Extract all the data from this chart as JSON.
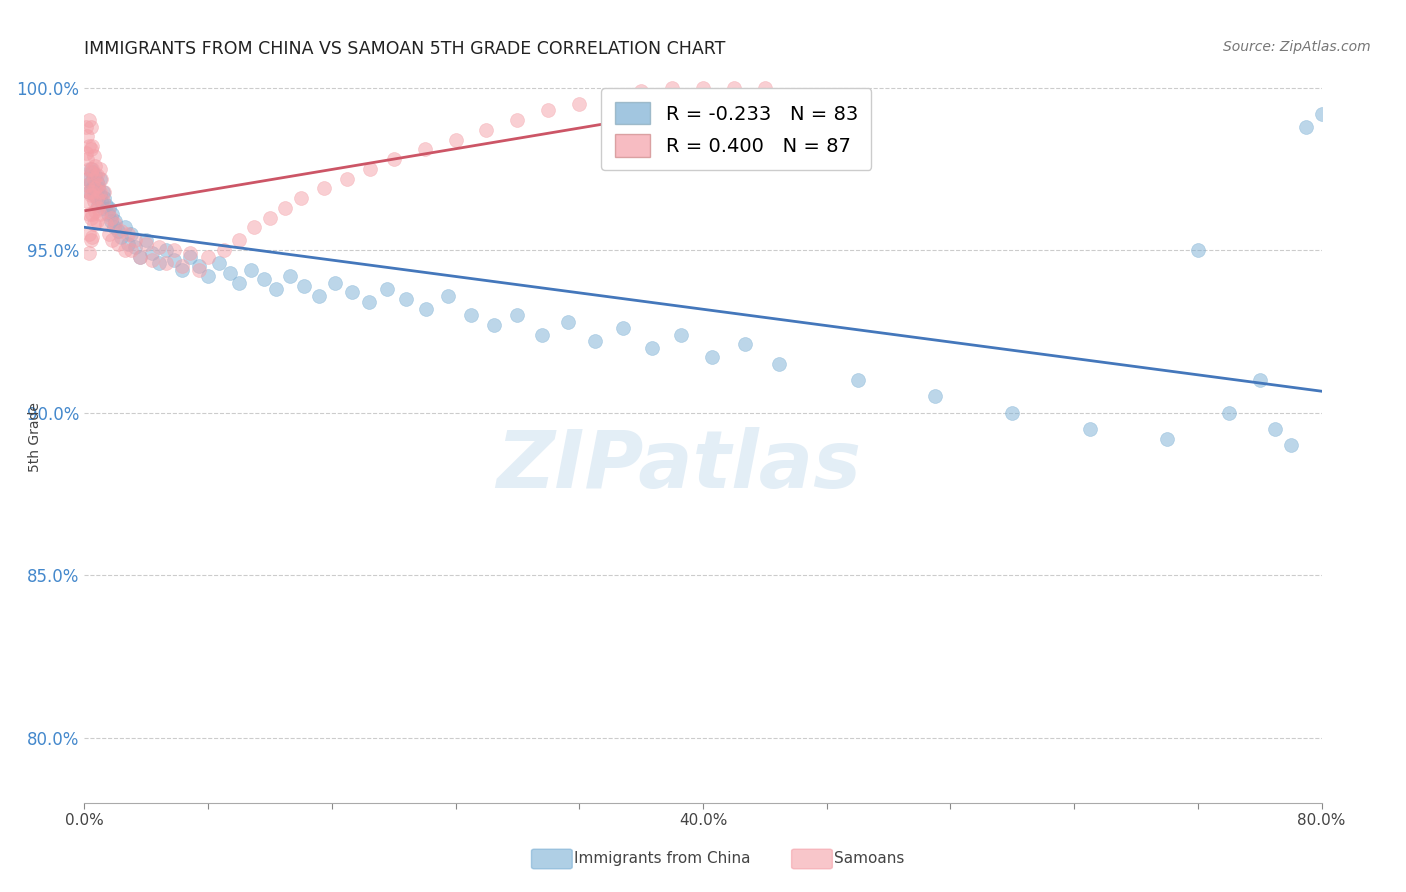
{
  "title": "IMMIGRANTS FROM CHINA VS SAMOAN 5TH GRADE CORRELATION CHART",
  "source": "Source: ZipAtlas.com",
  "ylabel": "5th Grade",
  "xlim": [
    0.0,
    0.8
  ],
  "ylim": [
    0.78,
    1.005
  ],
  "xtick_positions": [
    0.0,
    0.08,
    0.16,
    0.24,
    0.32,
    0.4,
    0.48,
    0.56,
    0.64,
    0.72,
    0.8
  ],
  "xtick_labels": [
    "0.0%",
    "",
    "",
    "",
    "",
    "40.0%",
    "",
    "",
    "",
    "",
    "80.0%"
  ],
  "ytick_positions": [
    0.8,
    0.85,
    0.9,
    0.95,
    1.0
  ],
  "ytick_labels": [
    "80.0%",
    "85.0%",
    "90.0%",
    "95.0%",
    "100.0%"
  ],
  "legend_r_china": "-0.233",
  "legend_n_china": "83",
  "legend_r_samoan": "0.400",
  "legend_n_samoan": "87",
  "blue_color": "#7BAFD4",
  "pink_color": "#F4A0A8",
  "blue_line_color": "#4477BB",
  "pink_line_color": "#CC5566",
  "watermark_text": "ZIPatlas",
  "bottom_legend_china": "Immigrants from China",
  "bottom_legend_samoan": "Samoans",
  "china_x": [
    0.002,
    0.003,
    0.004,
    0.004,
    0.005,
    0.005,
    0.006,
    0.006,
    0.007,
    0.007,
    0.008,
    0.008,
    0.009,
    0.009,
    0.01,
    0.01,
    0.011,
    0.012,
    0.012,
    0.013,
    0.014,
    0.015,
    0.016,
    0.017,
    0.018,
    0.019,
    0.02,
    0.022,
    0.024,
    0.026,
    0.028,
    0.03,
    0.033,
    0.036,
    0.04,
    0.044,
    0.048,
    0.053,
    0.058,
    0.063,
    0.068,
    0.074,
    0.08,
    0.087,
    0.094,
    0.1,
    0.108,
    0.116,
    0.124,
    0.133,
    0.142,
    0.152,
    0.162,
    0.173,
    0.184,
    0.196,
    0.208,
    0.221,
    0.235,
    0.25,
    0.265,
    0.28,
    0.296,
    0.313,
    0.33,
    0.348,
    0.367,
    0.386,
    0.406,
    0.427,
    0.449,
    0.5,
    0.55,
    0.6,
    0.65,
    0.7,
    0.72,
    0.74,
    0.76,
    0.77,
    0.78,
    0.79,
    0.8
  ],
  "china_y": [
    0.972,
    0.968,
    0.971,
    0.975,
    0.969,
    0.974,
    0.97,
    0.967,
    0.973,
    0.968,
    0.971,
    0.966,
    0.969,
    0.964,
    0.972,
    0.967,
    0.965,
    0.968,
    0.963,
    0.966,
    0.964,
    0.961,
    0.963,
    0.959,
    0.961,
    0.957,
    0.959,
    0.956,
    0.954,
    0.957,
    0.952,
    0.955,
    0.951,
    0.948,
    0.953,
    0.949,
    0.946,
    0.95,
    0.947,
    0.944,
    0.948,
    0.945,
    0.942,
    0.946,
    0.943,
    0.94,
    0.944,
    0.941,
    0.938,
    0.942,
    0.939,
    0.936,
    0.94,
    0.937,
    0.934,
    0.938,
    0.935,
    0.932,
    0.936,
    0.93,
    0.927,
    0.93,
    0.924,
    0.928,
    0.922,
    0.926,
    0.92,
    0.924,
    0.917,
    0.921,
    0.915,
    0.91,
    0.905,
    0.9,
    0.895,
    0.892,
    0.95,
    0.9,
    0.91,
    0.895,
    0.89,
    0.988,
    0.992
  ],
  "samoan_x": [
    0.001,
    0.001,
    0.001,
    0.002,
    0.002,
    0.002,
    0.002,
    0.003,
    0.003,
    0.003,
    0.003,
    0.003,
    0.003,
    0.003,
    0.004,
    0.004,
    0.004,
    0.004,
    0.004,
    0.004,
    0.005,
    0.005,
    0.005,
    0.005,
    0.005,
    0.006,
    0.006,
    0.006,
    0.006,
    0.007,
    0.007,
    0.007,
    0.008,
    0.008,
    0.008,
    0.009,
    0.009,
    0.01,
    0.01,
    0.01,
    0.011,
    0.012,
    0.013,
    0.014,
    0.015,
    0.016,
    0.017,
    0.018,
    0.02,
    0.022,
    0.024,
    0.026,
    0.028,
    0.03,
    0.033,
    0.036,
    0.04,
    0.044,
    0.048,
    0.053,
    0.058,
    0.063,
    0.068,
    0.074,
    0.08,
    0.09,
    0.1,
    0.11,
    0.12,
    0.13,
    0.14,
    0.155,
    0.17,
    0.185,
    0.2,
    0.22,
    0.24,
    0.26,
    0.28,
    0.3,
    0.32,
    0.34,
    0.36,
    0.38,
    0.4,
    0.42,
    0.44
  ],
  "samoan_y": [
    0.988,
    0.98,
    0.972,
    0.985,
    0.978,
    0.97,
    0.965,
    0.99,
    0.982,
    0.975,
    0.968,
    0.961,
    0.955,
    0.949,
    0.988,
    0.981,
    0.974,
    0.967,
    0.96,
    0.953,
    0.982,
    0.975,
    0.968,
    0.961,
    0.954,
    0.979,
    0.972,
    0.965,
    0.958,
    0.976,
    0.969,
    0.962,
    0.973,
    0.966,
    0.959,
    0.97,
    0.963,
    0.975,
    0.968,
    0.961,
    0.972,
    0.965,
    0.968,
    0.958,
    0.962,
    0.955,
    0.96,
    0.953,
    0.958,
    0.952,
    0.956,
    0.95,
    0.955,
    0.95,
    0.953,
    0.948,
    0.952,
    0.947,
    0.951,
    0.946,
    0.95,
    0.945,
    0.949,
    0.944,
    0.948,
    0.95,
    0.953,
    0.957,
    0.96,
    0.963,
    0.966,
    0.969,
    0.972,
    0.975,
    0.978,
    0.981,
    0.984,
    0.987,
    0.99,
    0.993,
    0.995,
    0.997,
    0.999,
    1.0,
    1.0,
    1.0,
    1.0
  ]
}
